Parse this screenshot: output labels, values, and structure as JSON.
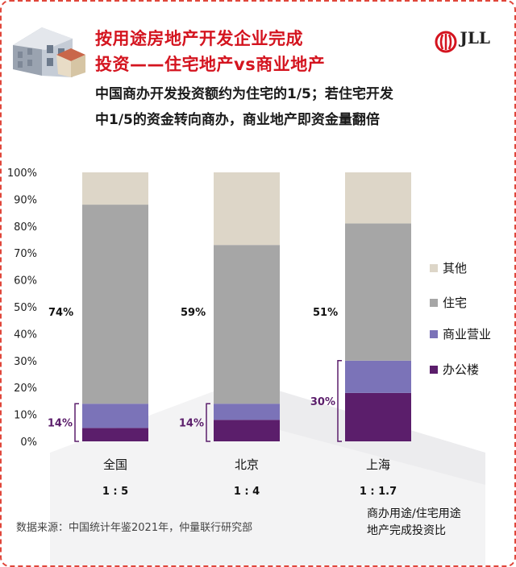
{
  "header": {
    "title_line1": "按用途房地产开发企业完成",
    "title_line2": "投资——住宅地产vs商业地产",
    "subtitle_line1": "中国商办开发投资额约为住宅的1/5；若住宅开发",
    "subtitle_line2": "中1/5的资金转向商办，商业地产即资金量翻倍",
    "logo_text": "JLL"
  },
  "colors": {
    "title": "#d4141f",
    "office": "#5b1e6b",
    "commercial": "#7b73b8",
    "residential": "#a6a6a6",
    "other": "#ddd6c8",
    "annotation": "#5b1e6b"
  },
  "chart_data": {
    "type": "bar",
    "stacked": true,
    "categories": [
      "全国",
      "北京",
      "上海"
    ],
    "ylim": [
      0,
      100
    ],
    "ytick_labels": [
      "0%",
      "10%",
      "20%",
      "30%",
      "40%",
      "50%",
      "60%",
      "70%",
      "80%",
      "90%",
      "100%"
    ],
    "series": [
      {
        "name": "办公楼",
        "values": [
          5,
          8,
          18
        ]
      },
      {
        "name": "商业营业",
        "values": [
          9,
          6,
          12
        ]
      },
      {
        "name": "住宅",
        "values": [
          74,
          59,
          51
        ]
      },
      {
        "name": "其他",
        "values": [
          12,
          27,
          19
        ]
      }
    ],
    "residential_labels": [
      "74%",
      "59%",
      "51%"
    ],
    "office_commercial_labels": [
      "14%",
      "14%",
      "30%"
    ],
    "ratio_labels": [
      "1 : 5",
      "1 : 4",
      "1 : 1.7"
    ],
    "legend_order": [
      "其他",
      "住宅",
      "商业营业",
      "办公楼"
    ],
    "legend_position": "right"
  },
  "footer": {
    "source": "数据来源：中国统计年鉴2021年，仲量联行研究部",
    "ratio_note_line1": "商办用途/住宅用途",
    "ratio_note_line2": "地产完成投资比"
  }
}
